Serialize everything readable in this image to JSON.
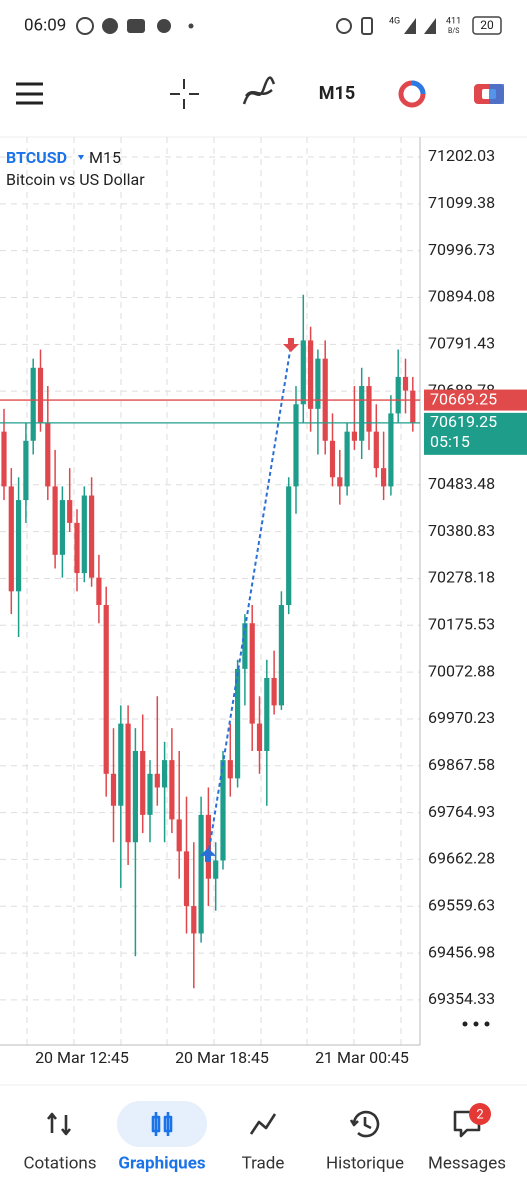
{
  "status_bar": {
    "time": "06:09",
    "network": "4G",
    "speed": "411",
    "speed_unit": "B/S",
    "battery": "20"
  },
  "toolbar": {
    "timeframe": "M15"
  },
  "chart_data": {
    "type": "candlestick",
    "symbol": "BTCUSD",
    "timeframe": "M15",
    "description": "Bitcoin vs US Dollar",
    "up_color": "#1f9d8b",
    "down_color": "#e0474c",
    "ohlc": [
      [
        70600,
        70650,
        70450,
        70480
      ],
      [
        70480,
        70520,
        70200,
        70250
      ],
      [
        70250,
        70500,
        70150,
        70450
      ],
      [
        70450,
        70620,
        70400,
        70580
      ],
      [
        70580,
        70760,
        70550,
        70740
      ],
      [
        70740,
        70780,
        70600,
        70620
      ],
      [
        70620,
        70700,
        70450,
        70480
      ],
      [
        70480,
        70560,
        70300,
        70330
      ],
      [
        70330,
        70480,
        70280,
        70450
      ],
      [
        70450,
        70520,
        70380,
        70400
      ],
      [
        70400,
        70430,
        70250,
        70290
      ],
      [
        70290,
        70480,
        70270,
        70460
      ],
      [
        70460,
        70500,
        70260,
        70280
      ],
      [
        70280,
        70330,
        70180,
        70220
      ],
      [
        70220,
        70260,
        69800,
        69850
      ],
      [
        69850,
        69950,
        69700,
        69780
      ],
      [
        69780,
        70000,
        69600,
        69960
      ],
      [
        69960,
        70000,
        69650,
        69700
      ],
      [
        69700,
        69950,
        69450,
        69900
      ],
      [
        69900,
        69980,
        69720,
        69760
      ],
      [
        69760,
        69880,
        69700,
        69850
      ],
      [
        69850,
        70020,
        69780,
        69820
      ],
      [
        69820,
        69920,
        69700,
        69880
      ],
      [
        69880,
        69950,
        69720,
        69750
      ],
      [
        69750,
        69900,
        69620,
        69680
      ],
      [
        69680,
        69800,
        69500,
        69560
      ],
      [
        69560,
        69700,
        69380,
        69500
      ],
      [
        69500,
        69800,
        69480,
        69760
      ],
      [
        69760,
        69820,
        69560,
        69620
      ],
      [
        69620,
        69700,
        69550,
        69660
      ],
      [
        69660,
        69900,
        69640,
        69880
      ],
      [
        69880,
        69960,
        69800,
        69840
      ],
      [
        69840,
        70100,
        69820,
        70080
      ],
      [
        70080,
        70200,
        70000,
        70180
      ],
      [
        70180,
        70220,
        69900,
        69960
      ],
      [
        69960,
        70020,
        69850,
        69900
      ],
      [
        69900,
        70100,
        69780,
        70060
      ],
      [
        70060,
        70120,
        69980,
        70000
      ],
      [
        70000,
        70250,
        69990,
        70220
      ],
      [
        70220,
        70500,
        70200,
        70480
      ],
      [
        70480,
        70700,
        70420,
        70660
      ],
      [
        70660,
        70900,
        70620,
        70800
      ],
      [
        70800,
        70830,
        70600,
        70650
      ],
      [
        70650,
        70780,
        70550,
        70760
      ],
      [
        70760,
        70800,
        70550,
        70580
      ],
      [
        70580,
        70640,
        70480,
        70500
      ],
      [
        70500,
        70560,
        70440,
        70480
      ],
      [
        70480,
        70620,
        70460,
        70600
      ],
      [
        70600,
        70700,
        70560,
        70580
      ],
      [
        70580,
        70740,
        70540,
        70700
      ],
      [
        70700,
        70720,
        70560,
        70600
      ],
      [
        70600,
        70660,
        70500,
        70520
      ],
      [
        70520,
        70600,
        70450,
        70480
      ],
      [
        70480,
        70680,
        70460,
        70640
      ],
      [
        70640,
        70780,
        70620,
        70720
      ],
      [
        70720,
        70760,
        70640,
        70690
      ],
      [
        70690,
        70720,
        70600,
        70619
      ]
    ],
    "ylim": [
      69255.5,
      71245.9
    ],
    "yticks": [
      71202.03,
      71099.38,
      70996.73,
      70894.08,
      70791.43,
      70688.78,
      70483.48,
      70380.83,
      70278.18,
      70175.53,
      70072.88,
      69970.23,
      69867.58,
      69764.93,
      69662.28,
      69559.63,
      69456.98,
      69354.33
    ],
    "x_labels": [
      "20 Mar 12:45",
      "20 Mar 18:45",
      "21 Mar 00:45"
    ],
    "price_lines": [
      {
        "value": 70669.25,
        "color": "#e04a4a"
      },
      {
        "value": 70619.25,
        "color": "#1f9d8b"
      }
    ],
    "countdown": "05:15",
    "trade": {
      "entry": 69670,
      "exit": 70790
    },
    "grid": true
  },
  "nav": {
    "items": [
      {
        "label": "Cotations"
      },
      {
        "label": "Graphiques"
      },
      {
        "label": "Trade"
      },
      {
        "label": "Historique"
      },
      {
        "label": "Messages"
      }
    ],
    "active": 1,
    "badge": 2
  }
}
